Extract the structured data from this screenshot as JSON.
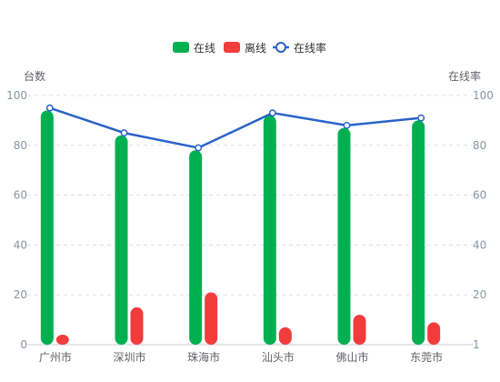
{
  "colors": {
    "online": "#00b050",
    "offline": "#f23c3c",
    "rate": "#2a63c9",
    "grid": "#dcdfe6",
    "tick": "#8a94a6"
  },
  "legend": {
    "online": "在线",
    "offline": "离线",
    "rate": "在线率"
  },
  "chart_data": {
    "type": "bar",
    "categories": [
      "广州市",
      "深圳市",
      "珠海市",
      "汕头市",
      "佛山市",
      "东莞市"
    ],
    "series": [
      {
        "name": "在线",
        "type": "bar",
        "axis": "left",
        "values": [
          94,
          84,
          78,
          92,
          87,
          90
        ]
      },
      {
        "name": "离线",
        "type": "bar",
        "axis": "left",
        "values": [
          4,
          15,
          21,
          7,
          12,
          9
        ]
      },
      {
        "name": "在线率",
        "type": "line",
        "axis": "right",
        "values": [
          95,
          85,
          79,
          93,
          88,
          91
        ]
      }
    ],
    "ylabel": "台数",
    "y2label": "在线率",
    "ylim": [
      0,
      100
    ],
    "y_ticks": [
      "0",
      "20",
      "40",
      "60",
      "80",
      "100"
    ],
    "y2_ticks": [
      "1",
      "20",
      "40",
      "60",
      "80",
      "100"
    ],
    "legend_position": "top-center",
    "grid": true
  }
}
